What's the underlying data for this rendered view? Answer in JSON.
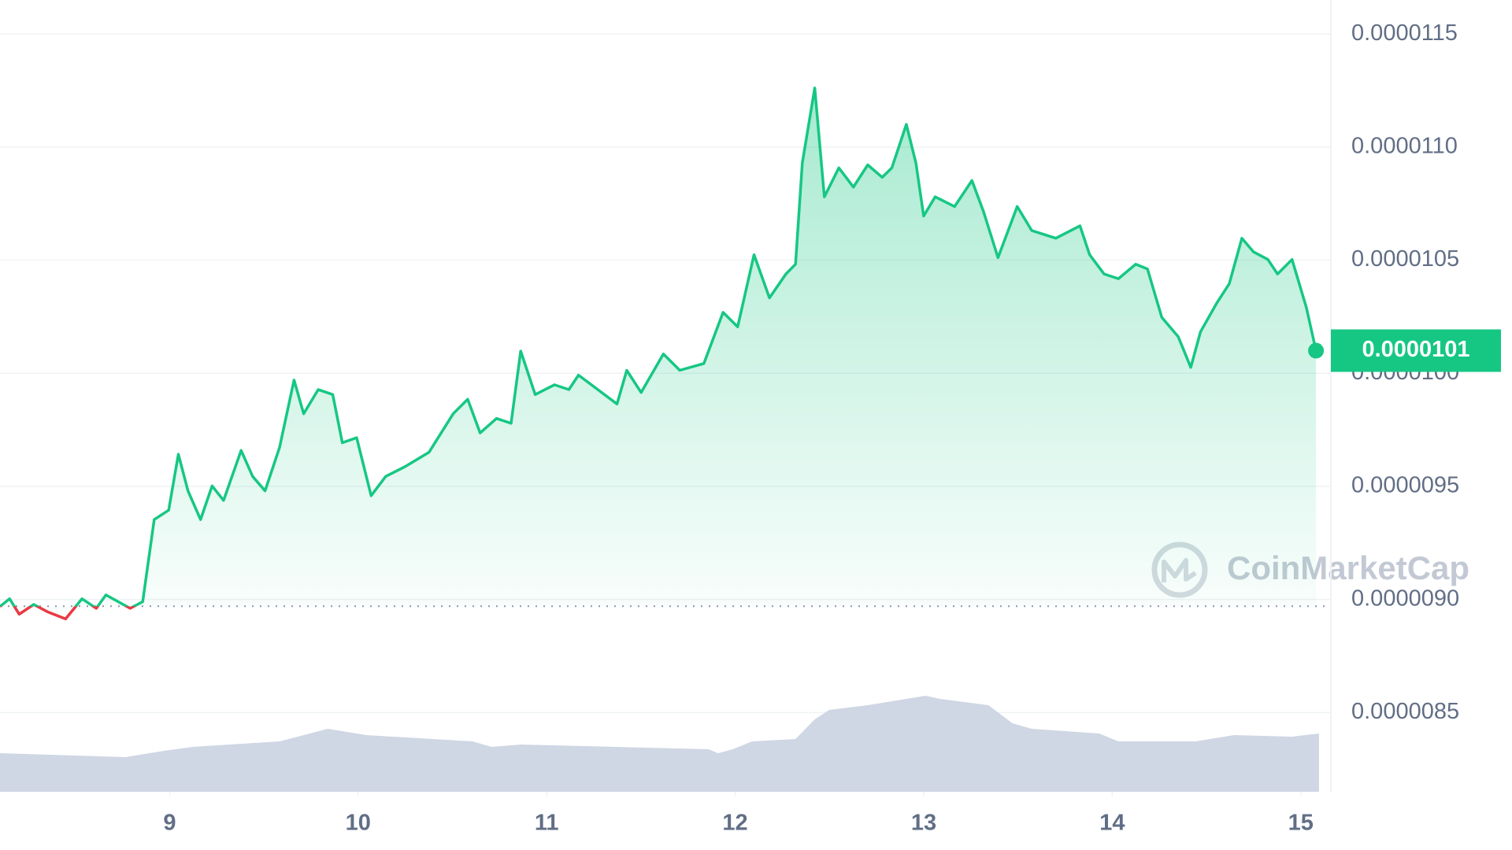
{
  "chart_data": {
    "type": "line",
    "x": [
      8.1,
      8.151,
      8.202,
      8.279,
      8.356,
      8.448,
      8.535,
      8.611,
      8.662,
      8.79,
      8.857,
      8.918,
      8.995,
      9.046,
      9.097,
      9.164,
      9.225,
      9.286,
      9.379,
      9.44,
      9.506,
      9.583,
      9.66,
      9.711,
      9.788,
      9.865,
      9.916,
      9.992,
      10.069,
      10.146,
      10.248,
      10.376,
      10.504,
      10.581,
      10.647,
      10.734,
      10.811,
      10.862,
      10.939,
      11.041,
      11.118,
      11.169,
      11.271,
      11.373,
      11.425,
      11.501,
      11.619,
      11.706,
      11.834,
      11.936,
      12.013,
      12.1,
      12.182,
      12.269,
      12.32,
      12.356,
      12.422,
      12.473,
      12.55,
      12.627,
      12.703,
      12.78,
      12.831,
      12.908,
      12.959,
      13.0,
      13.061,
      13.164,
      13.256,
      13.317,
      13.394,
      13.496,
      13.573,
      13.701,
      13.829,
      13.88,
      13.957,
      14.033,
      14.125,
      14.187,
      14.263,
      14.35,
      14.417,
      14.468,
      14.555,
      14.621,
      14.688,
      14.749,
      14.826,
      14.877,
      14.954,
      15.03,
      15.081
    ],
    "values": [
      8.969e-06,
      9.003e-06,
      8.935e-06,
      8.978e-06,
      8.944e-06,
      8.914e-06,
      9.003e-06,
      8.961e-06,
      9.02e-06,
      8.961e-06,
      8.99e-06,
      9.353e-06,
      9.395e-06,
      9.642e-06,
      9.48e-06,
      9.353e-06,
      9.502e-06,
      9.438e-06,
      9.659e-06,
      9.544e-06,
      9.48e-06,
      9.672e-06,
      9.97e-06,
      9.821e-06,
      9.928e-06,
      9.906e-06,
      9.693e-06,
      9.715e-06,
      9.459e-06,
      9.544e-06,
      9.587e-06,
      9.651e-06,
      9.821e-06,
      9.885e-06,
      9.736e-06,
      9.8e-06,
      9.779e-06,
      1.0098e-05,
      9.906e-06,
      9.949e-06,
      9.928e-06,
      9.992e-06,
      9.928e-06,
      9.864e-06,
      1.0013e-05,
      9.915e-06,
      1.0085e-05,
      1.0013e-05,
      1.0043e-05,
      1.0269e-05,
      1.0205e-05,
      1.0524e-05,
      1.0333e-05,
      1.0439e-05,
      1.0482e-05,
      1.0929e-05,
      1.1261e-05,
      1.078e-05,
      1.0908e-05,
      1.0823e-05,
      1.0921e-05,
      1.0866e-05,
      1.0908e-05,
      1.11e-05,
      1.0929e-05,
      1.0695e-05,
      1.078e-05,
      1.0737e-05,
      1.0852e-05,
      1.0716e-05,
      1.0511e-05,
      1.0737e-05,
      1.0631e-05,
      1.0597e-05,
      1.0652e-05,
      1.0524e-05,
      1.0439e-05,
      1.0418e-05,
      1.0482e-05,
      1.0461e-05,
      1.0247e-05,
      1.0162e-05,
      1.0026e-05,
      1.0183e-05,
      1.0311e-05,
      1.0396e-05,
      1.0597e-05,
      1.0537e-05,
      1.0503e-05,
      1.0439e-05,
      1.0503e-05,
      1.029e-05,
      1.01e-05
    ],
    "color": "#16c784",
    "down_color": "#ea3943",
    "baseline": 8.97e-06,
    "xlim": [
      8.1,
      15.16
    ],
    "xticks": [
      9,
      10,
      11,
      12,
      13,
      14,
      15
    ],
    "ylim": [
      8.15e-06,
      1.165e-05
    ],
    "yticks": [
      8.5e-06,
      {
        "value": 9e-06,
        "label": "0.0000090"
      },
      9.5e-06,
      {
        "value": 1e-05,
        "label": "0.0000100"
      },
      1.05e-05,
      {
        "value": 1.1e-05,
        "label": "0.0000110"
      },
      1.15e-05
    ],
    "grid": true,
    "watermark": "CoinMarketCap",
    "volume": {
      "color": "#cfd6e4",
      "ylim": [
        0,
        300
      ],
      "x": [
        8.1,
        8.765,
        8.97,
        9.123,
        9.583,
        9.839,
        10.043,
        10.606,
        10.708,
        10.862,
        11.859,
        11.91,
        11.987,
        12.09,
        12.32,
        12.422,
        12.499,
        12.703,
        12.934,
        13.01,
        13.087,
        13.343,
        13.471,
        13.573,
        13.931,
        14.033,
        14.442,
        14.647,
        14.954,
        15.097
      ],
      "values": [
        49,
        44,
        52,
        57,
        64,
        80,
        72,
        64,
        57,
        60,
        54,
        49,
        54,
        64,
        67,
        92,
        104,
        110,
        119,
        122,
        118,
        110,
        87,
        80,
        74,
        64,
        64,
        72,
        70,
        74
      ]
    }
  }
}
